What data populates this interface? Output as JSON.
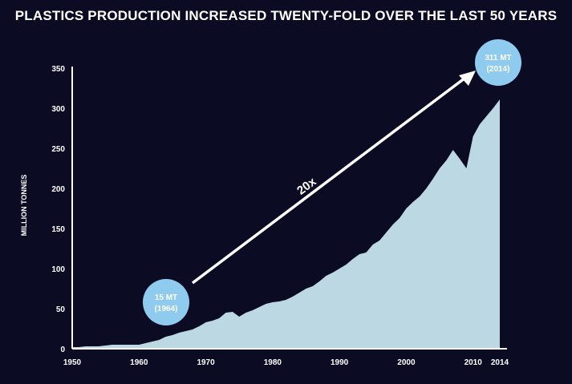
{
  "chart_data": {
    "type": "area",
    "title": "PLASTICS PRODUCTION INCREASED TWENTY-FOLD OVER THE LAST 50 YEARS",
    "xlabel": "",
    "ylabel": "MILLION TONNES",
    "xlim": [
      1950,
      2014
    ],
    "ylim": [
      0,
      350
    ],
    "x_ticks": [
      "1950",
      "1960",
      "1970",
      "1980",
      "1990",
      "2000",
      "2010",
      "2014"
    ],
    "y_ticks": [
      "0",
      "50",
      "100",
      "150",
      "200",
      "250",
      "300",
      "350"
    ],
    "x": [
      1950,
      1951,
      1952,
      1953,
      1954,
      1955,
      1956,
      1957,
      1958,
      1959,
      1960,
      1961,
      1962,
      1963,
      1964,
      1965,
      1966,
      1967,
      1968,
      1969,
      1970,
      1971,
      1972,
      1973,
      1974,
      1975,
      1976,
      1977,
      1978,
      1979,
      1980,
      1981,
      1982,
      1983,
      1984,
      1985,
      1986,
      1987,
      1988,
      1989,
      1990,
      1991,
      1992,
      1993,
      1994,
      1995,
      1996,
      1997,
      1998,
      1999,
      2000,
      2001,
      2002,
      2003,
      2004,
      2005,
      2006,
      2007,
      2008,
      2009,
      2010,
      2011,
      2012,
      2013,
      2014
    ],
    "series": [
      {
        "values": [
          2,
          2,
          3,
          3,
          3,
          4,
          5,
          5,
          5,
          5,
          5,
          7,
          9,
          11,
          15,
          17,
          20,
          22,
          24,
          28,
          33,
          35,
          38,
          45,
          46,
          40,
          45,
          48,
          52,
          56,
          58,
          59,
          61,
          65,
          70,
          75,
          78,
          84,
          91,
          95,
          100,
          105,
          112,
          118,
          120,
          130,
          135,
          145,
          155,
          163,
          175,
          183,
          190,
          200,
          212,
          225,
          235,
          248,
          237,
          225,
          265,
          280,
          290,
          300,
          311
        ]
      }
    ],
    "annotations": {
      "start": {
        "line1": "15 MT",
        "line2": "(1964)"
      },
      "end": {
        "line1": "311 MT",
        "line2": "(2014)"
      },
      "multiplier": "20x"
    },
    "grid": false,
    "colors": {
      "background": "#0b0b24",
      "area": "#bcd9e3",
      "bubble": "#8fcbef",
      "text": "#ffffff"
    }
  }
}
